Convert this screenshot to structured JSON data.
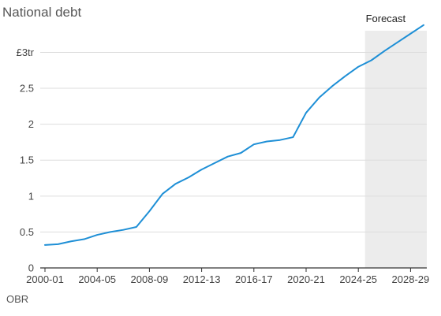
{
  "chart_data": {
    "type": "line",
    "title": "National debt",
    "source": "OBR",
    "xlabel": "",
    "ylabel": "",
    "ylim": [
      0,
      3.4
    ],
    "grid": true,
    "line_color": "#1e8fd6",
    "forecast": {
      "label": "Forecast",
      "start": "2025-26",
      "end": "2029-30",
      "color": "#ececec"
    },
    "x_ticks": [
      "2000-01",
      "2004-05",
      "2008-09",
      "2012-13",
      "2016-17",
      "2020-21",
      "2024-25",
      "2028-29"
    ],
    "y_ticks": [
      {
        "value": 0,
        "label": "0"
      },
      {
        "value": 0.5,
        "label": "0.5"
      },
      {
        "value": 1,
        "label": "1"
      },
      {
        "value": 1.5,
        "label": "1.5"
      },
      {
        "value": 2,
        "label": "2"
      },
      {
        "value": 2.5,
        "label": "2.5"
      },
      {
        "value": 3,
        "label": "£3tr"
      }
    ],
    "series": [
      {
        "x": [
          "2000-01",
          "2001-02",
          "2002-03",
          "2003-04",
          "2004-05",
          "2005-06",
          "2006-07",
          "2007-08",
          "2008-09",
          "2009-10",
          "2010-11",
          "2011-12",
          "2012-13",
          "2013-14",
          "2014-15",
          "2015-16",
          "2016-17",
          "2017-18",
          "2018-19",
          "2019-20",
          "2020-21",
          "2021-22",
          "2022-23",
          "2023-24",
          "2024-25",
          "2025-26",
          "2026-27",
          "2027-28",
          "2028-29",
          "2029-30"
        ],
        "values": [
          0.32,
          0.33,
          0.37,
          0.4,
          0.46,
          0.5,
          0.53,
          0.57,
          0.79,
          1.03,
          1.17,
          1.26,
          1.37,
          1.46,
          1.55,
          1.6,
          1.72,
          1.76,
          1.78,
          1.82,
          2.16,
          2.37,
          2.53,
          2.67,
          2.8,
          2.89,
          3.02,
          3.14,
          3.26,
          3.38
        ]
      }
    ]
  }
}
